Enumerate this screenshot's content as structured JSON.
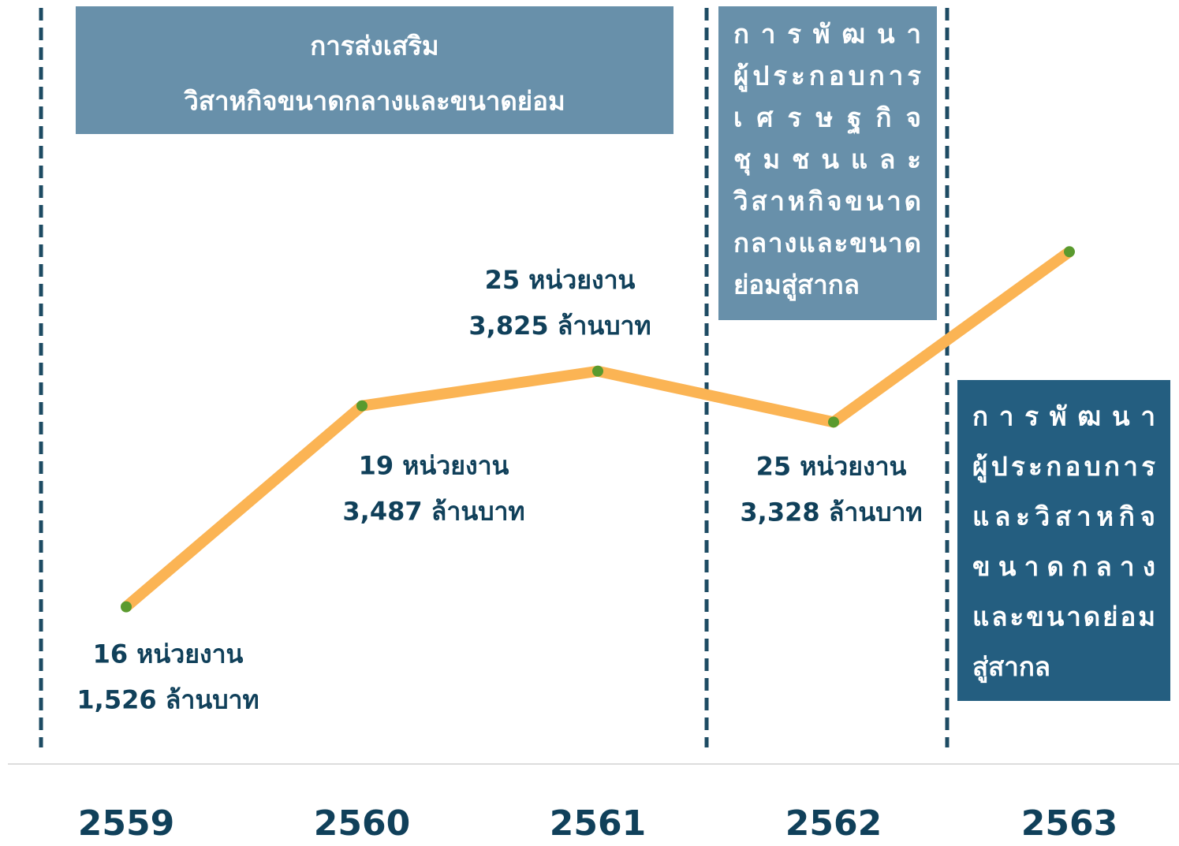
{
  "chart_data": {
    "type": "line",
    "categories": [
      "2559",
      "2560",
      "2561",
      "2562",
      "2563"
    ],
    "values": [
      1526,
      3487,
      3825,
      3328,
      4990
    ],
    "value_labels": [
      "1,526 ล้านบาท",
      "3,487 ล้านบาท",
      "3,825 ล้านบาท",
      "3,328 ล้านบาท",
      null
    ],
    "count_labels": [
      "16 หน่วยงาน",
      "19 หน่วยงาน",
      "25 หน่วยงาน",
      "25 หน่วยงาน",
      null
    ],
    "color": "#fbb454",
    "marker_color": "#5a9a2e",
    "ylim": [
      0,
      7000
    ],
    "phases": [
      {
        "lines": [
          "การส่งเสริม",
          "วิสาหกิจขนาดกลางและขนาดย่อม"
        ]
      },
      {
        "lines": [
          "การพัฒนา",
          "ผู้ประกอบการ",
          "เศรษฐกิจ",
          "ชุมชนและ",
          "วิสาหกิจขนาด",
          "กลางและขนาด",
          "ย่อมสู่สากล"
        ]
      },
      {
        "lines": [
          "การพัฒนา",
          "ผู้ประกอบการ",
          "และวิสาหกิจ",
          "ขนาดกลาง",
          "และขนาดย่อม",
          "สู่สากล"
        ]
      }
    ]
  }
}
